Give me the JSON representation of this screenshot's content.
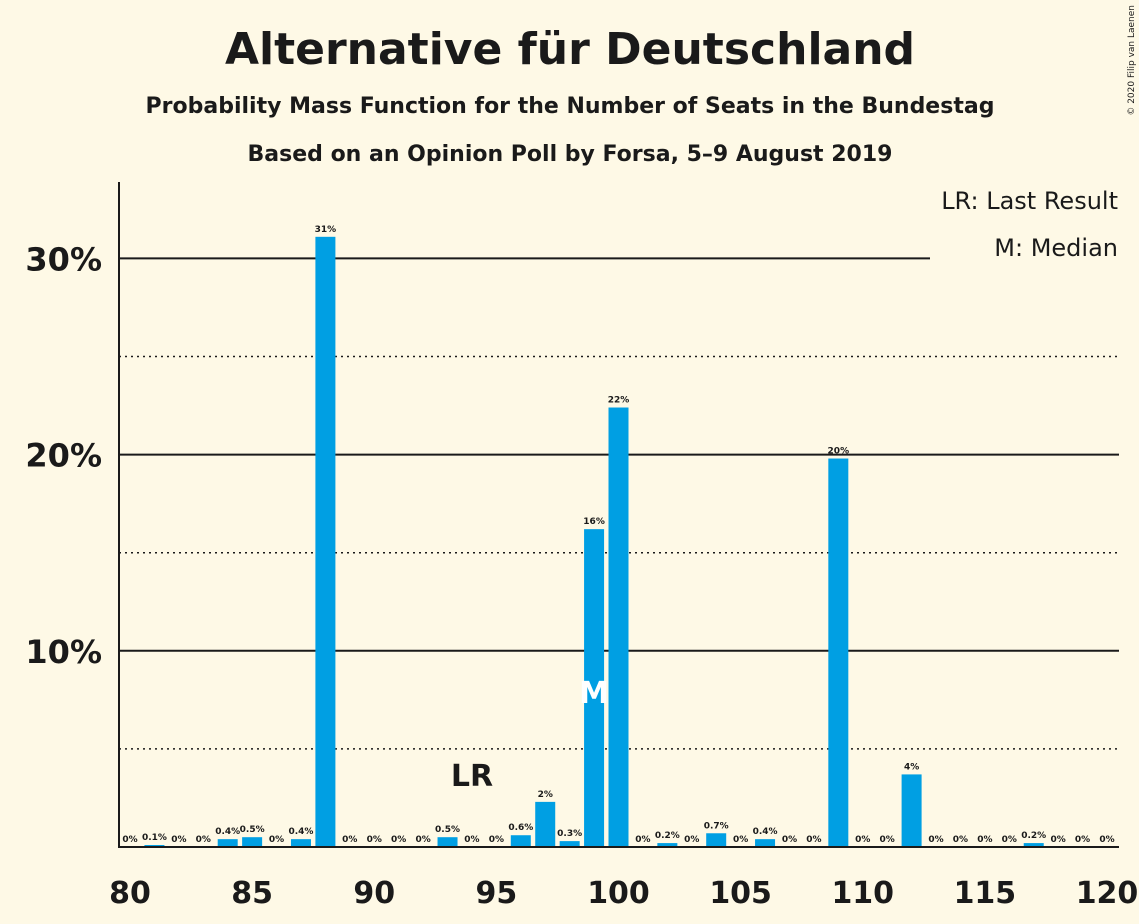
{
  "chart_data": {
    "type": "bar",
    "title": "Alternative für Deutschland",
    "subtitle1": "Probability Mass Function for the Number of Seats in the Bundestag",
    "subtitle2": "Based on an Opinion Poll by Forsa, 5–9 August 2019",
    "copyright": "© 2020 Filip van Laenen",
    "legend": [
      "LR: Last Result",
      "M: Median"
    ],
    "xlim": [
      80,
      120
    ],
    "ylim": [
      0,
      34
    ],
    "x_ticks": [
      80,
      85,
      90,
      95,
      100,
      105,
      110,
      115,
      120
    ],
    "y_ticks": [
      {
        "value": 10,
        "label": "10%"
      },
      {
        "value": 20,
        "label": "20%"
      },
      {
        "value": 30,
        "label": "30%"
      }
    ],
    "minor_grid": [
      5,
      15,
      25
    ],
    "bar_color": "#009fe3",
    "last_result": {
      "seat": 94,
      "label": "LR"
    },
    "median": {
      "seat": 99,
      "label": "M"
    },
    "bars": [
      {
        "seat": 80,
        "value": 0,
        "label": "0%"
      },
      {
        "seat": 81,
        "value": 0.1,
        "label": "0.1%"
      },
      {
        "seat": 82,
        "value": 0,
        "label": "0%"
      },
      {
        "seat": 83,
        "value": 0,
        "label": "0%"
      },
      {
        "seat": 84,
        "value": 0.4,
        "label": "0.4%"
      },
      {
        "seat": 85,
        "value": 0.5,
        "label": "0.5%"
      },
      {
        "seat": 86,
        "value": 0,
        "label": "0%"
      },
      {
        "seat": 87,
        "value": 0.4,
        "label": "0.4%"
      },
      {
        "seat": 88,
        "value": 31.1,
        "label": "31%"
      },
      {
        "seat": 89,
        "value": 0,
        "label": "0%"
      },
      {
        "seat": 90,
        "value": 0,
        "label": "0%"
      },
      {
        "seat": 91,
        "value": 0,
        "label": "0%"
      },
      {
        "seat": 92,
        "value": 0,
        "label": "0%"
      },
      {
        "seat": 93,
        "value": 0.5,
        "label": "0.5%"
      },
      {
        "seat": 94,
        "value": 0,
        "label": "0%"
      },
      {
        "seat": 95,
        "value": 0,
        "label": "0%"
      },
      {
        "seat": 96,
        "value": 0.6,
        "label": "0.6%"
      },
      {
        "seat": 97,
        "value": 2.3,
        "label": "2%"
      },
      {
        "seat": 98,
        "value": 0.3,
        "label": "0.3%"
      },
      {
        "seat": 99,
        "value": 16.2,
        "label": "16%"
      },
      {
        "seat": 100,
        "value": 22.4,
        "label": "22%"
      },
      {
        "seat": 101,
        "value": 0,
        "label": "0%"
      },
      {
        "seat": 102,
        "value": 0.2,
        "label": "0.2%"
      },
      {
        "seat": 103,
        "value": 0,
        "label": "0%"
      },
      {
        "seat": 104,
        "value": 0.7,
        "label": "0.7%"
      },
      {
        "seat": 105,
        "value": 0,
        "label": "0%"
      },
      {
        "seat": 106,
        "value": 0.4,
        "label": "0.4%"
      },
      {
        "seat": 107,
        "value": 0,
        "label": "0%"
      },
      {
        "seat": 108,
        "value": 0,
        "label": "0%"
      },
      {
        "seat": 109,
        "value": 19.8,
        "label": "20%"
      },
      {
        "seat": 110,
        "value": 0,
        "label": "0%"
      },
      {
        "seat": 111,
        "value": 0,
        "label": "0%"
      },
      {
        "seat": 112,
        "value": 3.7,
        "label": "4%"
      },
      {
        "seat": 113,
        "value": 0,
        "label": "0%"
      },
      {
        "seat": 114,
        "value": 0,
        "label": "0%"
      },
      {
        "seat": 115,
        "value": 0,
        "label": "0%"
      },
      {
        "seat": 116,
        "value": 0,
        "label": "0%"
      },
      {
        "seat": 117,
        "value": 0.2,
        "label": "0.2%"
      },
      {
        "seat": 118,
        "value": 0,
        "label": "0%"
      },
      {
        "seat": 119,
        "value": 0,
        "label": "0%"
      },
      {
        "seat": 120,
        "value": 0,
        "label": "0%"
      }
    ]
  }
}
